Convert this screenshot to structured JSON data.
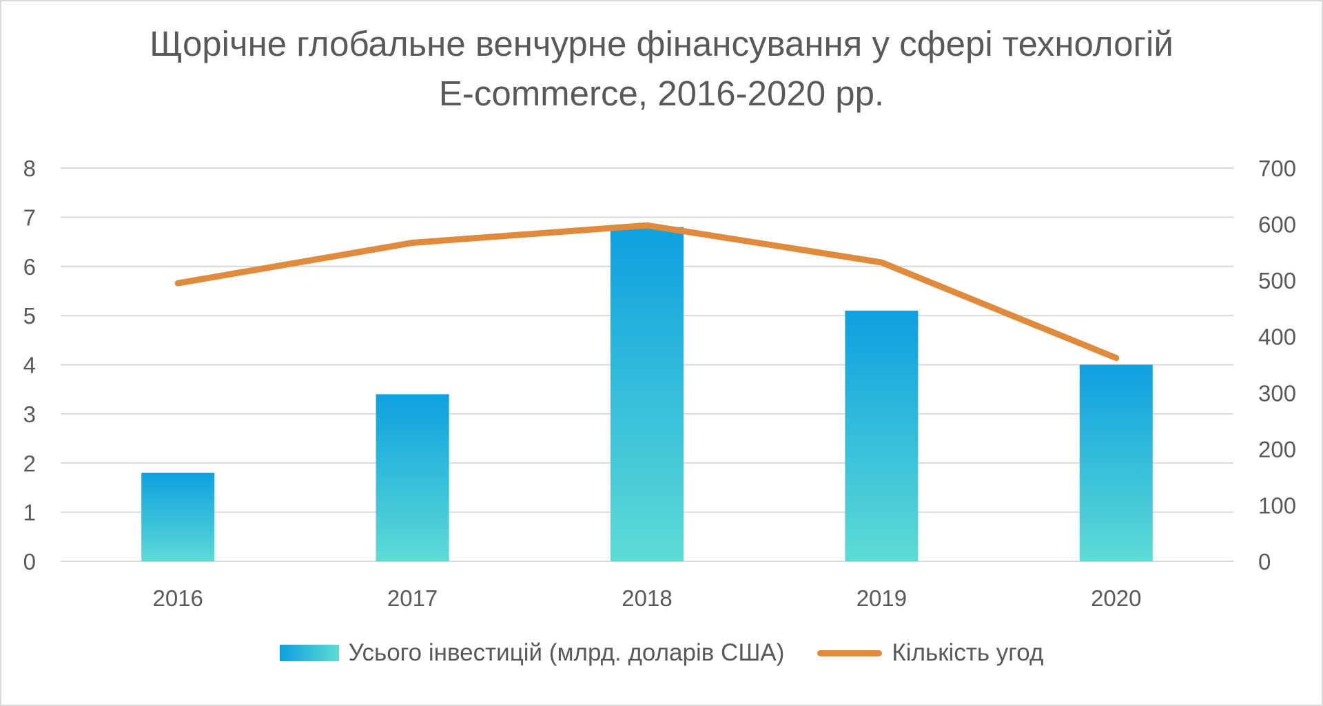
{
  "title_line1": "Щорічне глобальне венчурне фінансування у сфері технологій",
  "title_line2": "E-commerce, 2016-2020 рр.",
  "colors": {
    "bar_top": "#0ea0e0",
    "bar_bottom": "#5ddbd5",
    "line": "#e08a3c",
    "grid": "#d9d9d9",
    "text": "#595959"
  },
  "legend": {
    "bar_label": "Усього інвестицій (млрд. доларів США)",
    "line_label": "Кількість угод"
  },
  "chart_data": {
    "type": "bar",
    "title": "Щорічне глобальне венчурне фінансування у сфері технологій E-commerce, 2016-2020 рр.",
    "categories": [
      "2016",
      "2017",
      "2018",
      "2019",
      "2020"
    ],
    "series": [
      {
        "name": "Усього інвестицій (млрд. доларів США)",
        "type": "bar",
        "axis": "left",
        "values": [
          1.8,
          3.4,
          6.8,
          5.1,
          4.0
        ]
      },
      {
        "name": "Кількість угод",
        "type": "line",
        "axis": "right",
        "values": [
          495,
          567,
          598,
          532,
          362
        ]
      }
    ],
    "y_left": {
      "min": 0,
      "max": 8,
      "ticks": [
        "0",
        "1",
        "2",
        "3",
        "4",
        "5",
        "6",
        "7",
        "8"
      ]
    },
    "y_right": {
      "min": 0,
      "max": 700,
      "ticks": [
        "0",
        "100",
        "200",
        "300",
        "400",
        "500",
        "600",
        "700"
      ]
    },
    "grid": true,
    "legend_position": "bottom"
  }
}
